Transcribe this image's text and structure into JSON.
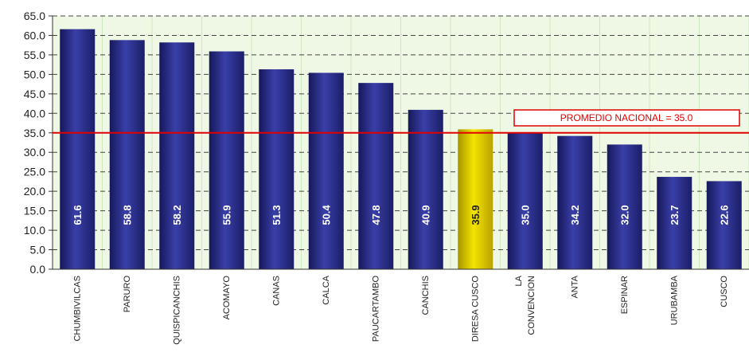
{
  "chart_data": {
    "type": "bar",
    "categories": [
      "CHUMBIVILCAS",
      "PARURO",
      "QUISPICANCHIS",
      "ACOMAYO",
      "CANAS",
      "CALCA",
      "PAUCARTAMBO",
      "CANCHIS",
      "DIRESA CUSCO",
      "LA CONVENCION",
      "ANTA",
      "ESPINAR",
      "URUBAMBA",
      "CUSCO"
    ],
    "category_lines": [
      [
        "CHUMBIVILCAS"
      ],
      [
        "PARURO"
      ],
      [
        "QUISPICANCHIS"
      ],
      [
        "ACOMAYO"
      ],
      [
        "CANAS"
      ],
      [
        "CALCA"
      ],
      [
        "PAUCARTAMBO"
      ],
      [
        "CANCHIS"
      ],
      [
        "DIRESA CUSCO"
      ],
      [
        "LA",
        "CONVENCION"
      ],
      [
        "ANTA"
      ],
      [
        "ESPINAR"
      ],
      [
        "URUBAMBA"
      ],
      [
        "CUSCO"
      ]
    ],
    "values": [
      61.6,
      58.8,
      58.2,
      55.9,
      51.3,
      50.4,
      47.8,
      40.9,
      35.9,
      35.0,
      34.2,
      32.0,
      23.7,
      22.6
    ],
    "value_labels": [
      "61.6",
      "58.8",
      "58.2",
      "55.9",
      "51.3",
      "50.4",
      "47.8",
      "40.9",
      "35.9",
      "35.0",
      "34.2",
      "32.0",
      "23.7",
      "22.6"
    ],
    "highlight_index": 8,
    "ylim": [
      0,
      65
    ],
    "yticks": [
      "0.0",
      "5.0",
      "10.0",
      "15.0",
      "20.0",
      "25.0",
      "30.0",
      "35.0",
      "40.0",
      "45.0",
      "50.0",
      "55.0",
      "60.0",
      "65.0"
    ],
    "reference_line": {
      "value": 35.0,
      "label": "PROMEDIO NACIONAL = 35.0"
    },
    "grid": true,
    "colors": {
      "bar": "#2b2f8c",
      "bar_highlight": "#e8d400",
      "reference": "#e00000",
      "plot_bg": "#eef8e4",
      "grid": "#444444"
    }
  }
}
